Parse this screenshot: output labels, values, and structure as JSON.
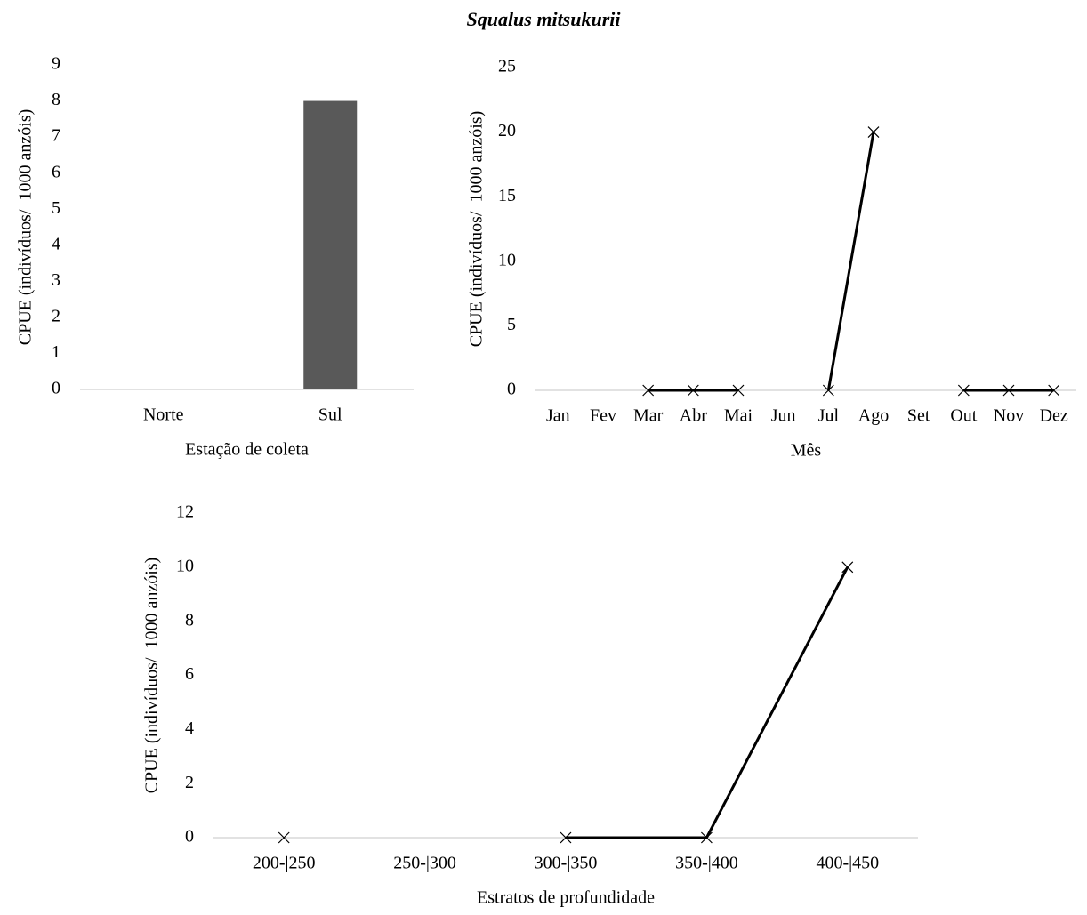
{
  "title": "Squalus mitsukurii",
  "chart_data": [
    {
      "type": "bar",
      "x_label": "Estação de coleta",
      "y_label": "CPUE (indivíduos/  1000 anzóis)",
      "categories": [
        "Norte",
        "Sul"
      ],
      "values": [
        0,
        8
      ],
      "color": "#595959",
      "ylim": [
        0,
        9
      ],
      "yticks": [
        0,
        1,
        2,
        3,
        4,
        5,
        6,
        7,
        8,
        9
      ]
    },
    {
      "type": "line",
      "x_label": "Mês",
      "y_label": "CPUE (indivíduos/  1000 anzóis)",
      "categories": [
        "Jan",
        "Fev",
        "Mar",
        "Abr",
        "Mai",
        "Jun",
        "Jul",
        "Ago",
        "Set",
        "Out",
        "Nov",
        "Dez"
      ],
      "values": [
        null,
        null,
        0,
        0,
        0,
        null,
        0,
        20,
        null,
        0,
        0,
        0
      ],
      "color": "#000000",
      "ylim": [
        0,
        25
      ],
      "yticks": [
        0,
        5,
        10,
        15,
        20,
        25
      ]
    },
    {
      "type": "line",
      "x_label": "Estratos de profundidade",
      "y_label": "CPUE (indivíduos/  1000 anzóis)",
      "categories": [
        "200-|250",
        "250-|300",
        "300-|350",
        "350-|400",
        "400-|450"
      ],
      "values": [
        0,
        null,
        0,
        0,
        10
      ],
      "color": "#000000",
      "ylim": [
        0,
        12
      ],
      "yticks": [
        0,
        2,
        4,
        6,
        8,
        10,
        12
      ]
    }
  ]
}
